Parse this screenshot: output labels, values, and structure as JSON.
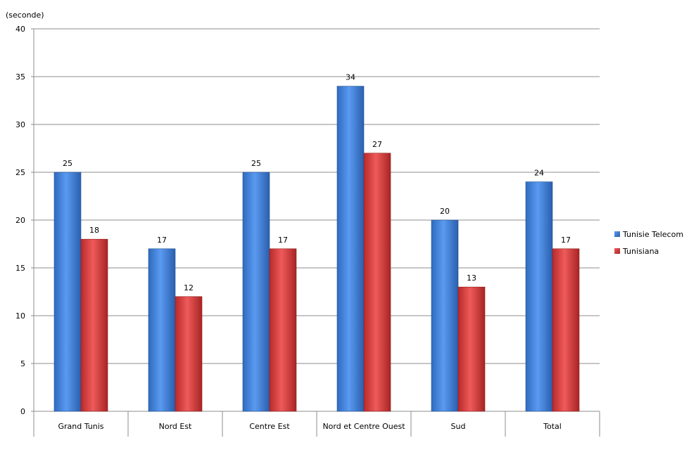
{
  "chart_data": {
    "type": "bar",
    "unit_label": "(seconde)",
    "categories": [
      "Grand Tunis",
      "Nord Est",
      "Centre Est",
      "Nord et Centre Ouest",
      "Sud",
      "Total"
    ],
    "series": [
      {
        "name": "Tunisie Telecom",
        "values": [
          25,
          17,
          25,
          34,
          20,
          24
        ],
        "color": "#3a7fd8"
      },
      {
        "name": "Tunisiana",
        "values": [
          18,
          12,
          17,
          27,
          13,
          17
        ],
        "color": "#d83a3a"
      }
    ],
    "ylim": [
      0,
      40
    ],
    "yticks": [
      "0",
      "5",
      "10",
      "15",
      "20",
      "25",
      "30",
      "35",
      "40"
    ],
    "grid": true,
    "legend_position": "right"
  }
}
